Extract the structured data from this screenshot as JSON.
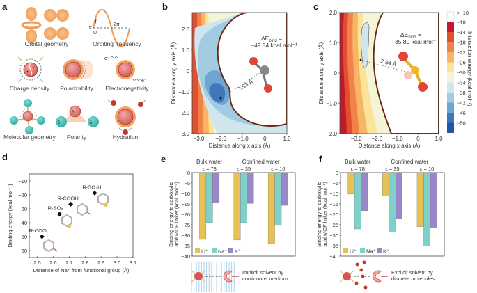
{
  "panels": {
    "a": {
      "label": "a",
      "items": [
        {
          "caption": "Orbital geometry",
          "icon": "orbital-lobes"
        },
        {
          "caption": "Orbiting frequency",
          "icon": "sine-wave",
          "wave_labels": [
            "e⁻",
            "ψ",
            "2π"
          ]
        },
        {
          "caption": "Charge density",
          "icon": "charged-sphere",
          "signs": [
            "+",
            "−"
          ]
        },
        {
          "caption": "Polarizability",
          "icon": "distorted-sphere"
        },
        {
          "caption": "Electronegativity",
          "icon": "electron-exchange",
          "electron_label": "e⁻"
        },
        {
          "caption": "Molecular geometry",
          "icon": "tetrahedral-molecule"
        },
        {
          "caption": "Polarity",
          "icon": "dipole",
          "charges": [
            "δ⁻",
            "δ⁺",
            "δ⁺"
          ]
        },
        {
          "caption": "Hydration",
          "icon": "hydrated-ion"
        }
      ]
    },
    "b": {
      "label": "b",
      "annotation_line1": "ΔE",
      "annotation_sub": "bind",
      "annotation_eq": " =",
      "annotation_line2": "−49.54 kcal mol⁻¹",
      "distance": "2.53 Å"
    },
    "c": {
      "label": "c",
      "annotation_line1": "ΔE",
      "annotation_sub": "bind",
      "annotation_eq": " =",
      "annotation_line2": "−35.80 kcal mol⁻¹",
      "distance": "2.84 Å"
    },
    "colorbar": {
      "title": "Interaction energy (kcal mol⁻¹)",
      "ticks": [
        ">−10",
        "−10",
        "−14",
        "−18",
        "−22",
        "−26",
        "−30",
        "−34",
        "−38",
        "−42",
        "−46",
        "−50"
      ],
      "colors": [
        "#ffffff",
        "#c4192b",
        "#e0502f",
        "#f0824a",
        "#f7b565",
        "#fbe39a",
        "#f3f5d6",
        "#cfe6ef",
        "#a2cbe2",
        "#6fa5d1",
        "#3f78b8",
        "#1f58a7"
      ]
    },
    "d": {
      "label": "d"
    },
    "e": {
      "label": "e",
      "note": "Implicit solvent by continuous medium"
    },
    "f": {
      "label": "f",
      "note": "Explicit solvent by discrete molecules"
    }
  },
  "chart_data": [
    {
      "id": "b",
      "type": "heatmap",
      "title": "",
      "xlabel": "Distance along x axis (Å)",
      "ylabel": "Distance along y axis (Å)",
      "xlim": [
        -3.3,
        1.0
      ],
      "ylim": [
        -3.0,
        2.8
      ],
      "xticks": [
        "−3.0",
        "−2.0",
        "−1.0",
        "0",
        "1.0"
      ],
      "xtick_values": [
        -3,
        -2,
        -1,
        0,
        1
      ],
      "yticks": [
        "−3.0",
        "−2.0",
        "−1.0",
        "0",
        "1.0",
        "2.0"
      ],
      "ytick_values": [
        -3,
        -2,
        -1,
        0,
        1,
        2
      ],
      "minimum_point": [
        -2.0,
        -1.4
      ],
      "binding_energy": -49.54,
      "distance_A": 2.53
    },
    {
      "id": "c",
      "type": "heatmap",
      "title": "",
      "xlabel": "Distance along x axis (Å)",
      "ylabel": "Distance along y axis (Å)",
      "xlim": [
        -3.8,
        1.0
      ],
      "ylim": [
        -2.0,
        2.0
      ],
      "xticks": [
        "−3.0",
        "−2.0",
        "−1.0",
        "0",
        "1.0"
      ],
      "xtick_values": [
        -3,
        -2,
        -1,
        0,
        1
      ],
      "yticks": [
        "−2.0",
        "−1.0",
        "0",
        "1.0",
        "2.0"
      ],
      "ytick_values": [
        -2,
        -1,
        0,
        1,
        2
      ],
      "minimum_point": [
        -2.8,
        0.45
      ],
      "binding_energy": -35.8,
      "distance_A": 2.84
    },
    {
      "id": "d",
      "type": "scatter",
      "title": "",
      "xlabel": "Distance of Na⁺ from functional group (Å)",
      "ylabel": "Binding energy (kcal mol⁻¹)",
      "xlim": [
        2.45,
        3.1
      ],
      "ylim": [
        -65,
        -5
      ],
      "xticks": [
        "2.5",
        "2.6",
        "2.7",
        "2.8",
        "2.9",
        "3.0",
        "3.1"
      ],
      "xtick_values": [
        2.5,
        2.6,
        2.7,
        2.8,
        2.9,
        3.0,
        3.1
      ],
      "yticks": [
        "−10",
        "−20",
        "−30",
        "−40",
        "−50",
        "−60"
      ],
      "ytick_values": [
        -10,
        -20,
        -30,
        -40,
        -50,
        -60
      ],
      "points": [
        {
          "label": "R-COO⁻",
          "x": 2.53,
          "y": -50
        },
        {
          "label": "R-SO₃⁻",
          "x": 2.64,
          "y": -33.8
        },
        {
          "label": "R-COOH",
          "x": 2.71,
          "y": -26.7
        },
        {
          "label": "R-SO₃H",
          "x": 2.86,
          "y": -18.7
        }
      ]
    },
    {
      "id": "e",
      "type": "bar",
      "title": "",
      "group_headers": [
        "Bulk water",
        "Confined water"
      ],
      "categories": [
        "ε = 78",
        "ε = 35",
        "ε = 10"
      ],
      "ylabel": "Binding energy to carboxylic acid MOF linker (kcal mol⁻¹)",
      "ylim": [
        -40,
        0
      ],
      "yticks": [
        "0",
        "−5",
        "−10",
        "−15",
        "−20",
        "−25",
        "−30",
        "−35",
        "−40"
      ],
      "ytick_values": [
        0,
        -5,
        -10,
        -15,
        -20,
        -25,
        -30,
        -35,
        -40
      ],
      "series": [
        {
          "name": "Li⁺",
          "color": "#e8c155",
          "values": [
            -32.0,
            -32.3,
            -34.0
          ]
        },
        {
          "name": "Na⁺",
          "color": "#7fd0c9",
          "values": [
            -24.0,
            -24.0,
            -25.3
          ]
        },
        {
          "name": "K⁺",
          "color": "#9a86c9",
          "values": [
            -14.5,
            -14.8,
            -15.7
          ]
        }
      ],
      "legend": "bottom-left"
    },
    {
      "id": "f",
      "type": "bar",
      "title": "",
      "group_headers": [
        "Bulk water",
        "Confined water"
      ],
      "categories": [
        "ε = 78",
        "ε = 35",
        "ε = 10"
      ],
      "ylabel": "Binding energy to carboxylic acid MOF linker (kcal mol⁻¹)",
      "ylim": [
        -40,
        0
      ],
      "yticks": [
        "0",
        "−5",
        "−10",
        "−15",
        "−20",
        "−25",
        "−30",
        "−35",
        "−40"
      ],
      "ytick_values": [
        0,
        -5,
        -10,
        -15,
        -20,
        -25,
        -30,
        -35,
        -40
      ],
      "series": [
        {
          "name": "Li⁺",
          "color": "#e8c155",
          "values": [
            -10.3,
            -11.3,
            -25.9
          ]
        },
        {
          "name": "Na⁺",
          "color": "#7fd0c9",
          "values": [
            -27.0,
            -28.6,
            -35.1
          ]
        },
        {
          "name": "K⁺",
          "color": "#9a86c9",
          "values": [
            -18.3,
            -22.2,
            -26.4
          ]
        }
      ],
      "legend": "bottom-left"
    }
  ]
}
